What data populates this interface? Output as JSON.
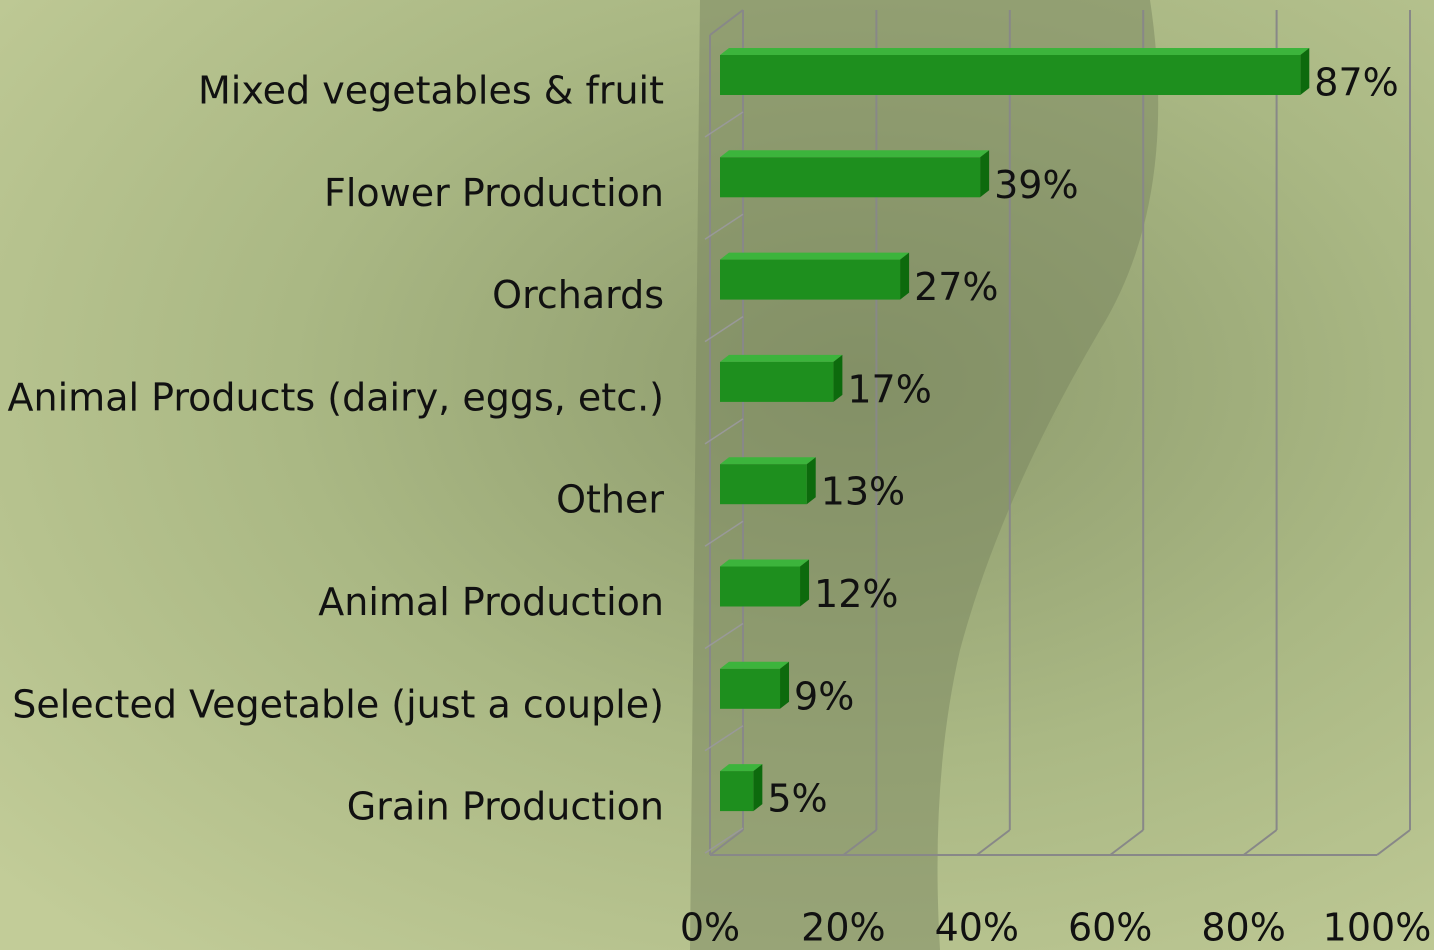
{
  "chart_data": {
    "type": "bar",
    "orientation": "horizontal",
    "categories": [
      "Mixed vegetables & fruit",
      "Flower Production",
      "Orchards",
      "Animal Products (dairy, eggs, etc.)",
      "Other",
      "Animal Production",
      "Selected Vegetable (just a couple)",
      "Grain Production"
    ],
    "values": [
      87,
      39,
      27,
      17,
      13,
      12,
      9,
      5
    ],
    "value_labels": [
      "87%",
      "39%",
      "27%",
      "17%",
      "13%",
      "12%",
      "9%",
      "5%"
    ],
    "color": "#1e8f1e",
    "xlim": [
      0,
      100
    ],
    "xticks": [
      {
        "value": 0,
        "label": "0%"
      },
      {
        "value": 20,
        "label": "20%"
      },
      {
        "value": 40,
        "label": "40%"
      },
      {
        "value": 60,
        "label": "60%"
      },
      {
        "value": 80,
        "label": "80%"
      },
      {
        "value": 100,
        "label": "100%"
      }
    ],
    "grid": true
  }
}
